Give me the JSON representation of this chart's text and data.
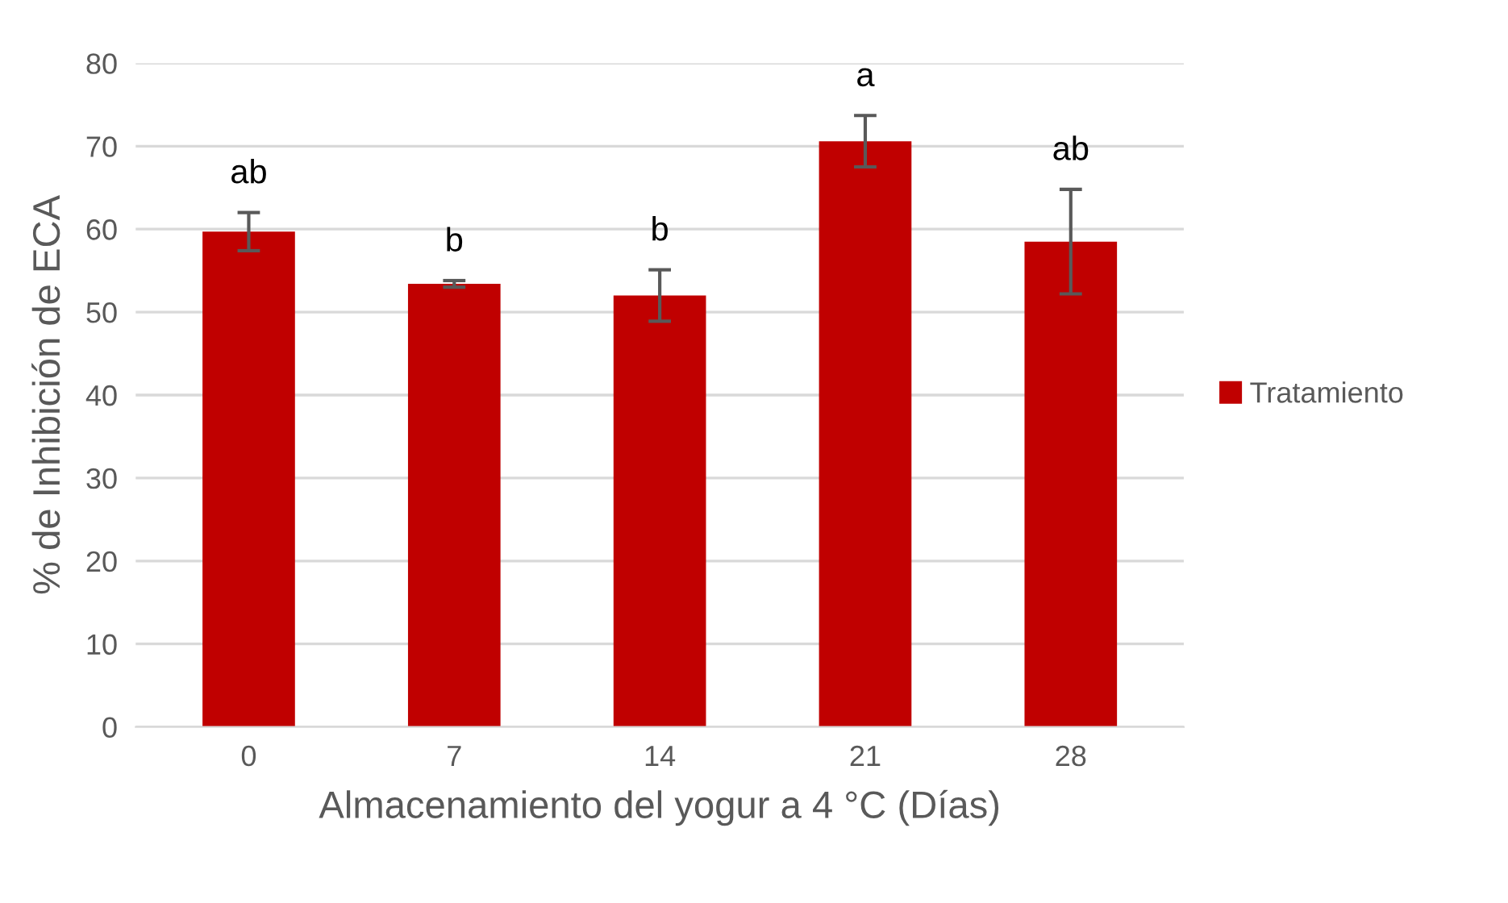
{
  "chart_data": {
    "type": "bar",
    "xlabel": "Almacenamiento del yogur a 4 °C (Días)",
    "ylabel": "% de Inhibición de ECA",
    "categories": [
      "0",
      "7",
      "14",
      "21",
      "28"
    ],
    "series": [
      {
        "name": "Tratamiento",
        "color": "#c00000",
        "values": [
          59.7,
          53.4,
          52.0,
          70.6,
          58.5
        ],
        "errors": [
          2.3,
          0.4,
          3.1,
          3.1,
          6.3
        ]
      }
    ],
    "ylim": [
      0,
      80
    ],
    "yticks": [
      0,
      10,
      20,
      30,
      40,
      50,
      60,
      70,
      80
    ],
    "grid": "y",
    "legend": "right",
    "annotations": [
      {
        "text": "ab",
        "x": "0",
        "y": 59.7
      },
      {
        "text": "b",
        "x": "7",
        "y": 53.4
      },
      {
        "text": "b",
        "x": "14",
        "y": 52.0
      },
      {
        "text": "a",
        "x": "21",
        "y": 70.6
      },
      {
        "text": "ab",
        "x": "28",
        "y": 58.5
      }
    ]
  }
}
